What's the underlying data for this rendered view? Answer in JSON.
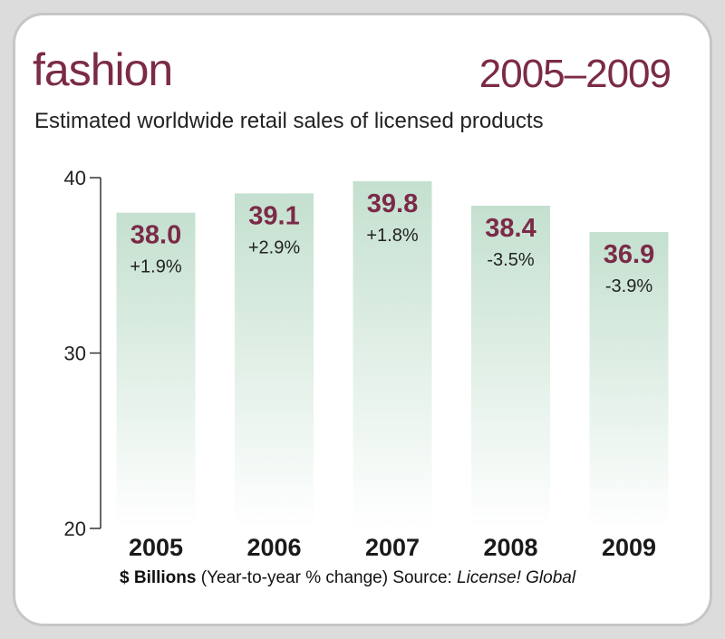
{
  "header": {
    "title": "fashion",
    "years": "2005–2009",
    "subtitle": "Estimated worldwide retail sales of licensed products"
  },
  "footer": {
    "units_bold": "$ Billions",
    "note": " (Year-to-year % change) Source: ",
    "source_italic": "License! Global"
  },
  "colors": {
    "accent": "#7b2a48",
    "bar_top": "#c4e0cf",
    "bar_bottom": "#ffffff"
  },
  "chart_data": {
    "type": "bar",
    "categories": [
      "2005",
      "2006",
      "2007",
      "2008",
      "2009"
    ],
    "values": [
      38.0,
      39.1,
      39.8,
      38.4,
      36.9
    ],
    "value_labels": [
      "38.0",
      "39.1",
      "39.8",
      "38.4",
      "36.9"
    ],
    "change_labels": [
      "+1.9%",
      "+2.9%",
      "+1.8%",
      "-3.5%",
      "-3.9%"
    ],
    "ylim": [
      20,
      40
    ],
    "yticks": [
      20,
      30,
      40
    ],
    "title": "",
    "xlabel": "",
    "ylabel": "",
    "grid": false
  }
}
